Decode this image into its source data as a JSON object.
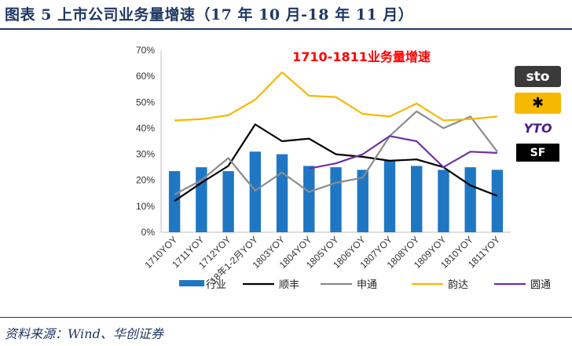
{
  "figure": {
    "title": "图表 5 上市公司业务量增速（17 年 10 月-18 年 11 月）",
    "source": "资料来源：Wind、华创证券",
    "logos": [
      {
        "name": "sto-logo",
        "text": "sto"
      },
      {
        "name": "yunda-logo",
        "text": "✱"
      },
      {
        "name": "yto-logo",
        "text": "YTO"
      },
      {
        "name": "sf-logo",
        "text": "SF"
      }
    ]
  },
  "chart_data": {
    "type": "bar",
    "title": "1710-1811业务量增速",
    "title_color": "#ff0000",
    "categories": [
      "1710YOY",
      "1711YOY",
      "1712YOY",
      "18年1-2月YOY",
      "1803YOY",
      "1804YOY",
      "1805YOY",
      "1806YOY",
      "1807YOY",
      "1808YOY",
      "1809YOY",
      "1810YOY",
      "1811YOY"
    ],
    "ylim": [
      0,
      70
    ],
    "yticks": [
      "0%",
      "10%",
      "20%",
      "30%",
      "40%",
      "50%",
      "60%",
      "70%"
    ],
    "ytick_values": [
      0,
      10,
      20,
      30,
      40,
      50,
      60,
      70
    ],
    "grid": false,
    "legend_position": "bottom",
    "series": [
      {
        "name": "行业",
        "type": "bar",
        "color": "#1f77c4",
        "values": [
          23.5,
          25,
          23.5,
          31,
          30,
          25.5,
          25,
          24,
          27.5,
          25.5,
          24,
          25,
          24
        ]
      },
      {
        "name": "顺丰",
        "type": "line",
        "color": "#000000",
        "values": [
          12,
          19,
          25.5,
          41.5,
          35,
          36,
          30,
          29,
          27.5,
          28,
          25,
          18,
          14
        ]
      },
      {
        "name": "申通",
        "type": "line",
        "color": "#8c8c8c",
        "values": [
          14.5,
          20,
          28.5,
          16,
          23,
          15.5,
          19,
          21,
          37,
          46.5,
          40,
          44.5,
          31
        ]
      },
      {
        "name": "韵达",
        "type": "line",
        "color": "#f5b800",
        "values": [
          43,
          43.5,
          45,
          51,
          61.5,
          52.5,
          52,
          45.5,
          44.5,
          49.5,
          43,
          43.5,
          44.5
        ]
      },
      {
        "name": "圆通",
        "type": "line",
        "color": "#7030a0",
        "values": [
          null,
          null,
          null,
          null,
          null,
          24.5,
          26.5,
          30,
          37,
          35,
          25,
          31,
          30.5
        ]
      }
    ]
  }
}
